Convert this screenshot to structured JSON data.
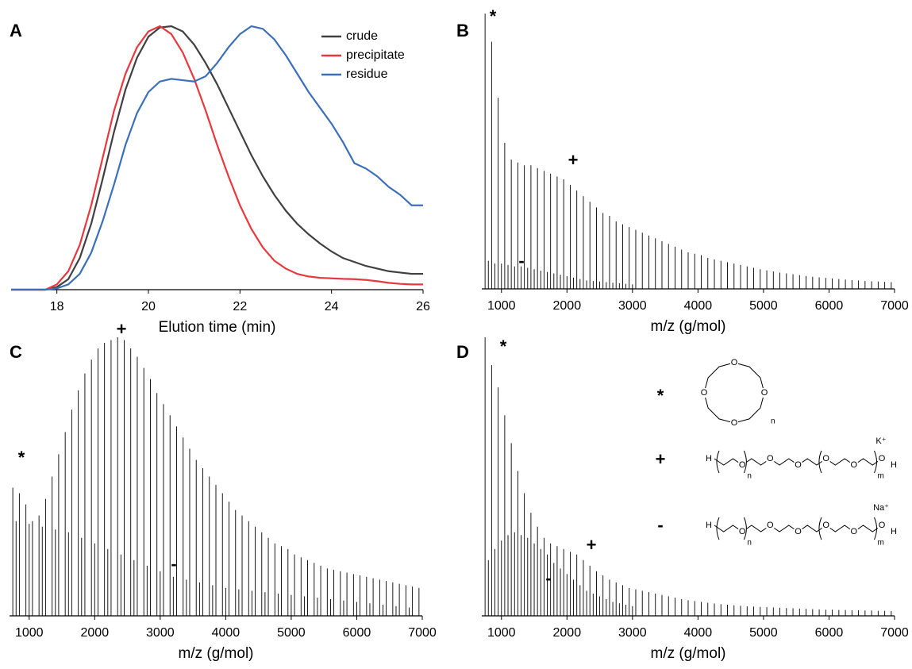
{
  "chart_data": [
    {
      "type": "line",
      "panel_label": "A",
      "x_label": "Elution time (min)",
      "xlim": [
        17,
        26
      ],
      "xticks": [
        18,
        20,
        22,
        24,
        26
      ],
      "ylim": [
        0,
        100
      ],
      "legend": "upper right",
      "x": [
        17,
        17.25,
        17.5,
        17.75,
        18,
        18.25,
        18.5,
        18.75,
        19,
        19.25,
        19.5,
        19.75,
        20,
        20.25,
        20.5,
        20.75,
        21,
        21.25,
        21.5,
        21.75,
        22,
        22.25,
        22.5,
        22.75,
        23,
        23.25,
        23.5,
        23.75,
        24,
        24.25,
        24.5,
        24.75,
        25,
        25.25,
        25.5,
        25.75,
        26
      ],
      "series": [
        {
          "name": "crude",
          "color": "#404040",
          "values": [
            0,
            0,
            0,
            0,
            1,
            4,
            12,
            25,
            42,
            60,
            76,
            88,
            96,
            99.5,
            100,
            98,
            93,
            86,
            78,
            69,
            60,
            51,
            43,
            36,
            30,
            25,
            21,
            17.5,
            14.5,
            12,
            10.5,
            9,
            8,
            7,
            6.5,
            6,
            6
          ]
        },
        {
          "name": "precipitate",
          "color": "#e8383d",
          "values": [
            0,
            0,
            0,
            0,
            2,
            7,
            17,
            32,
            50,
            68,
            82,
            92,
            98,
            100,
            97,
            90,
            80,
            68,
            55,
            43,
            32,
            23,
            16,
            11,
            8,
            6,
            5,
            4.5,
            4.3,
            4.1,
            4,
            3.7,
            3.2,
            2.6,
            2.2,
            2,
            2
          ]
        },
        {
          "name": "residue",
          "color": "#3b6fba",
          "values": [
            0,
            0,
            0,
            0,
            0.5,
            2,
            6,
            14,
            26,
            40,
            55,
            67,
            75,
            79,
            80,
            79.5,
            79,
            81,
            86,
            92,
            97,
            100,
            99,
            95,
            89,
            82,
            75,
            69,
            63,
            56,
            48,
            46,
            43,
            39,
            36,
            32,
            32
          ]
        }
      ]
    },
    {
      "type": "spectrum",
      "panel_label": "B",
      "x_label": "m/z (g/mol)",
      "xlim": [
        700,
        7000
      ],
      "xticks": [
        1000,
        2000,
        3000,
        4000,
        5000,
        6000,
        7000
      ],
      "ylim": [
        0,
        100
      ],
      "color": "#000000",
      "annotations": [
        "*",
        "+",
        "-"
      ],
      "series": [
        {
          "x": [
            750,
            850,
            950,
            1050,
            1150,
            1250,
            1350,
            1450,
            1550,
            1650,
            1750,
            1850,
            1950,
            2050,
            2150,
            2250,
            2350,
            2450,
            2550,
            2650,
            2750,
            2850,
            2950,
            3050,
            3150,
            3250,
            3350,
            3450,
            3550,
            3650,
            3750,
            3850,
            3950,
            4050,
            4150,
            4250,
            4350,
            4450,
            4550,
            4650,
            4750,
            4850,
            4950,
            5050,
            5150,
            5250,
            5350,
            5450,
            5550,
            5650,
            5750,
            5850,
            5950,
            6050,
            6150,
            6250,
            6350,
            6450,
            6550,
            6650,
            6750,
            6850,
            6950
          ],
          "values": [
            98,
            88,
            68,
            52,
            46,
            45,
            44,
            44,
            43,
            42,
            41,
            40,
            39,
            37,
            35,
            33,
            31,
            29,
            27,
            26,
            24,
            23,
            22,
            21,
            20,
            19,
            18,
            17,
            16,
            15,
            14,
            13,
            12.5,
            12,
            11,
            10.5,
            10,
            9.5,
            9,
            8.5,
            8,
            7.5,
            7,
            6.6,
            6.2,
            5.8,
            5.5,
            5.2,
            4.9,
            4.6,
            4.3,
            4.1,
            3.9,
            3.7,
            3.5,
            3.3,
            3.1,
            3,
            2.8,
            2.7,
            2.6,
            2.5,
            2.4
          ]
        },
        {
          "x": [
            800,
            900,
            1000,
            1100,
            1200,
            1300,
            1400,
            1500,
            1600,
            1700,
            1800,
            1900,
            2000,
            2100,
            2200,
            2300,
            2400,
            2500,
            2600,
            2700,
            2800,
            2900,
            3000
          ],
          "values": [
            10,
            9,
            9,
            8.5,
            8,
            8,
            7.5,
            7,
            6.5,
            6,
            5.5,
            5,
            4.5,
            4,
            3.5,
            3,
            2.8,
            2.6,
            2.4,
            2.2,
            2,
            1.8,
            1.6
          ]
        }
      ]
    },
    {
      "type": "spectrum",
      "panel_label": "C",
      "x_label": "m/z (g/mol)",
      "xlim": [
        700,
        7000
      ],
      "xticks": [
        1000,
        2000,
        3000,
        4000,
        5000,
        6000,
        7000
      ],
      "ylim": [
        0,
        100
      ],
      "color": "#000000",
      "annotations": [
        "*",
        "+",
        "-"
      ],
      "series": [
        {
          "x": [
            750,
            850,
            950,
            1050,
            1150,
            1250,
            1350,
            1450,
            1550,
            1650,
            1750,
            1850,
            1950,
            2050,
            2150,
            2250,
            2350,
            2450,
            2550,
            2650,
            2750,
            2850,
            2950,
            3050,
            3150,
            3250,
            3350,
            3450,
            3550,
            3650,
            3750,
            3850,
            3950,
            4050,
            4150,
            4250,
            4350,
            4450,
            4550,
            4650,
            4750,
            4850,
            4950,
            5050,
            5150,
            5250,
            5350,
            5450,
            5550,
            5650,
            5750,
            5850,
            5950,
            6050,
            6150,
            6250,
            6350,
            6450,
            6550,
            6650,
            6750,
            6850,
            6950
          ],
          "values": [
            46,
            44,
            40,
            34,
            36,
            42,
            50,
            58,
            66,
            74,
            81,
            87,
            92,
            96,
            98,
            99,
            100,
            99,
            96,
            93,
            89,
            85,
            80,
            76,
            72,
            68,
            64,
            60,
            56,
            53,
            50,
            47,
            44,
            41,
            38,
            36,
            34,
            32,
            30,
            28,
            26,
            25,
            24,
            22,
            21,
            20,
            19,
            18,
            17,
            16.5,
            16,
            15.5,
            15,
            14.5,
            14,
            13.5,
            13,
            12.5,
            12,
            11.5,
            11,
            10.5,
            10
          ]
        },
        {
          "x": [
            800,
            1000,
            1200,
            1400,
            1600,
            1800,
            2000,
            2200,
            2400,
            2600,
            2800,
            3000,
            3200,
            3400,
            3600,
            3800,
            4000,
            4200,
            4400,
            4600,
            4800,
            5000,
            5200,
            5400,
            5600,
            5800,
            6000,
            6200,
            6400,
            6600,
            6800
          ],
          "values": [
            34,
            33,
            32,
            31,
            30,
            28,
            26,
            24,
            22,
            20,
            18,
            16,
            14,
            13,
            12,
            11,
            10,
            9.5,
            9,
            8.5,
            8,
            7.5,
            7,
            6.5,
            6,
            5.5,
            5,
            4.5,
            4,
            3.5,
            3
          ]
        }
      ]
    },
    {
      "type": "spectrum",
      "panel_label": "D",
      "x_label": "m/z (g/mol)",
      "xlim": [
        700,
        7000
      ],
      "xticks": [
        1000,
        2000,
        3000,
        4000,
        5000,
        6000,
        7000
      ],
      "ylim": [
        0,
        100
      ],
      "color": "#000000",
      "annotations": [
        "*",
        "+",
        "-"
      ],
      "series": [
        {
          "x": [
            750,
            850,
            950,
            1050,
            1150,
            1250,
            1350,
            1450,
            1550,
            1650,
            1750,
            1850,
            1950,
            2050,
            2150,
            2250,
            2350,
            2450,
            2550,
            2650,
            2750,
            2850,
            2950,
            3050,
            3150,
            3250,
            3350,
            3450,
            3550,
            3650,
            3750,
            3850,
            3950,
            4050,
            4150,
            4250,
            4350,
            4450,
            4550,
            4650,
            4750,
            4850,
            4950,
            5050,
            5150,
            5250,
            5350,
            5450,
            5550,
            5650,
            5750,
            5850,
            5950,
            6050,
            6150,
            6250,
            6350,
            6450,
            6550,
            6650,
            6750,
            6850,
            6950
          ],
          "values": [
            100,
            90,
            82,
            72,
            62,
            52,
            44,
            37,
            32,
            28,
            26,
            25,
            24,
            23,
            22,
            20,
            18,
            16,
            14.5,
            13,
            12,
            11,
            10,
            9.5,
            9,
            8.5,
            8,
            7.5,
            7,
            6.5,
            6,
            5.6,
            5.3,
            5,
            4.7,
            4.4,
            4.2,
            4,
            3.8,
            3.6,
            3.4,
            3.3,
            3.2,
            3.1,
            3,
            2.9,
            2.8,
            2.7,
            2.6,
            2.5,
            2.4,
            2.3,
            2.2,
            2.2,
            2.1,
            2.1,
            2,
            2,
            1.9,
            1.9,
            1.8,
            1.8,
            1.7
          ]
        },
        {
          "x": [
            800,
            900,
            1000,
            1100,
            1200,
            1300,
            1400,
            1500,
            1600,
            1700,
            1800,
            1900,
            2000,
            2100,
            2200,
            2300,
            2400,
            2500,
            2600,
            2700,
            2800,
            2900,
            3000
          ],
          "values": [
            20,
            24,
            27,
            29,
            30,
            29,
            28,
            26,
            24,
            22,
            19,
            17,
            15,
            13,
            11,
            9,
            8,
            7,
            6,
            5,
            4.5,
            4,
            3.5
          ]
        }
      ],
      "structures": [
        {
          "symbol": "*"
        },
        {
          "symbol": "+",
          "cation": "K⁺"
        },
        {
          "symbol": "-",
          "cation": "Na⁺"
        }
      ],
      "atoms": {
        "oxygen": "O",
        "hydrogen": "H",
        "n": "n",
        "m": "m"
      }
    }
  ]
}
